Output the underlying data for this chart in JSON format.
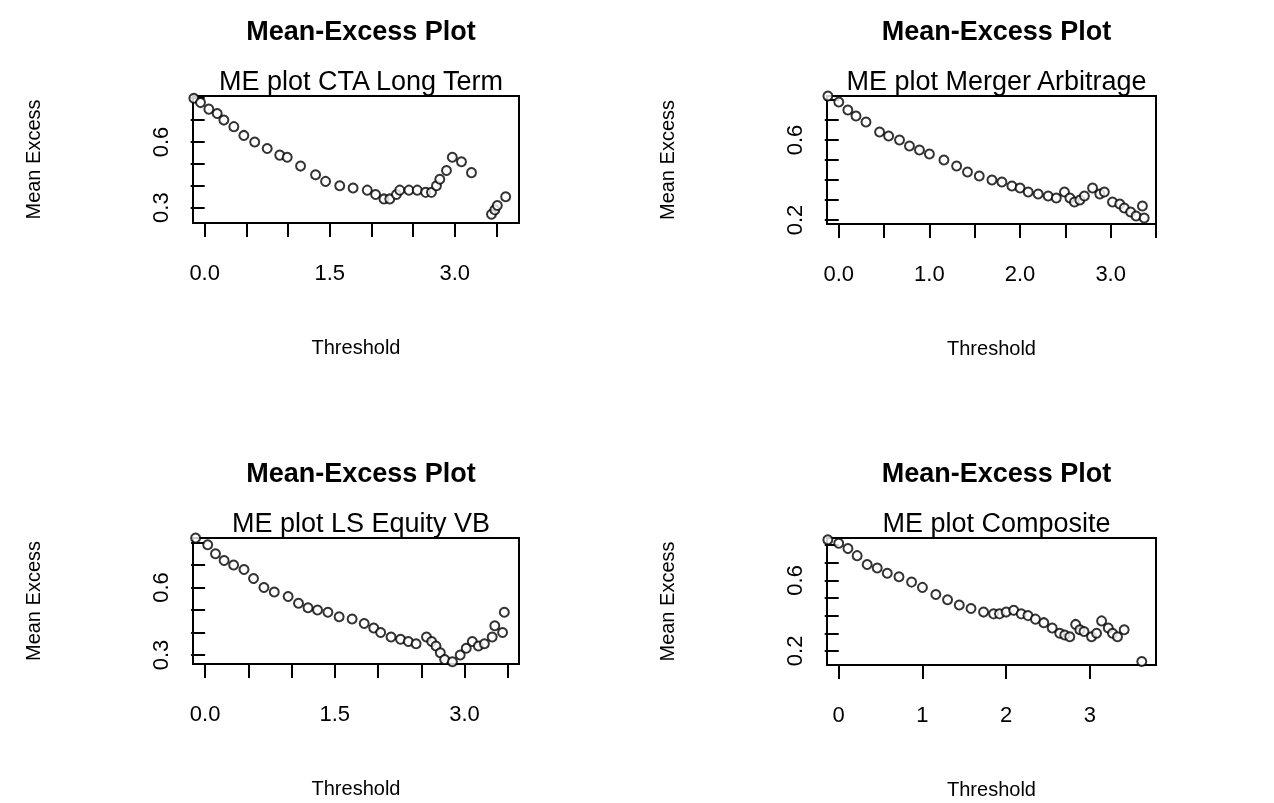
{
  "chart_data": [
    {
      "type": "scatter",
      "title": "Mean-Excess Plot",
      "subtitle": "ME plot CTA Long Term",
      "xlabel": "Threshold",
      "ylabel": "Mean Excess",
      "color": "#000000",
      "marker": "circle",
      "grid": false,
      "x": [
        -0.13,
        -0.05,
        0.05,
        0.15,
        0.23,
        0.35,
        0.47,
        0.6,
        0.75,
        0.9,
        0.99,
        1.15,
        1.33,
        1.45,
        1.62,
        1.78,
        1.95,
        2.05,
        2.15,
        2.22,
        2.3,
        2.34,
        2.45,
        2.55,
        2.65,
        2.72,
        2.78,
        2.82,
        2.9,
        2.97,
        3.08,
        3.2,
        3.44,
        3.48,
        3.51,
        3.61
      ],
      "values": [
        0.8,
        0.78,
        0.75,
        0.73,
        0.7,
        0.67,
        0.63,
        0.6,
        0.57,
        0.54,
        0.53,
        0.49,
        0.45,
        0.42,
        0.4,
        0.39,
        0.38,
        0.36,
        0.34,
        0.34,
        0.36,
        0.38,
        0.38,
        0.38,
        0.37,
        0.37,
        0.4,
        0.43,
        0.47,
        0.53,
        0.51,
        0.46,
        0.27,
        0.29,
        0.31,
        0.35
      ],
      "xlim": [
        -0.14,
        3.77
      ],
      "ylim": [
        0.23,
        0.81
      ],
      "xticks": [
        {
          "value": 0,
          "label": "0.0"
        },
        {
          "value": 0.5,
          "label": null
        },
        {
          "value": 1,
          "label": null
        },
        1.5,
        {
          "value": 2,
          "label": null
        },
        {
          "value": 2.5,
          "label": null
        },
        {
          "value": 3,
          "label": "3.0"
        },
        {
          "value": 3.5,
          "label": null
        }
      ],
      "yticks": [
        0.3,
        {
          "value": 0.4,
          "label": null
        },
        {
          "value": 0.5,
          "label": null
        },
        0.6,
        {
          "value": 0.7,
          "label": null
        },
        {
          "value": 0.8,
          "label": null
        }
      ]
    },
    {
      "type": "scatter",
      "title": "Mean-Excess Plot",
      "subtitle": "ME plot Merger Arbitrage",
      "xlabel": "Threshold",
      "ylabel": "Mean Excess",
      "color": "#000000",
      "marker": "circle",
      "grid": false,
      "x": [
        -0.12,
        0.0,
        0.1,
        0.19,
        0.3,
        0.45,
        0.55,
        0.67,
        0.78,
        0.89,
        1.0,
        1.16,
        1.3,
        1.42,
        1.55,
        1.69,
        1.8,
        1.91,
        2.0,
        2.09,
        2.2,
        2.31,
        2.4,
        2.49,
        2.55,
        2.6,
        2.66,
        2.71,
        2.8,
        2.88,
        2.93,
        3.02,
        3.1,
        3.15,
        3.22,
        3.28,
        3.35,
        3.37
      ],
      "values": [
        0.82,
        0.79,
        0.75,
        0.72,
        0.69,
        0.64,
        0.62,
        0.6,
        0.57,
        0.55,
        0.53,
        0.5,
        0.47,
        0.44,
        0.42,
        0.4,
        0.39,
        0.37,
        0.36,
        0.34,
        0.33,
        0.32,
        0.31,
        0.34,
        0.31,
        0.29,
        0.3,
        0.32,
        0.36,
        0.33,
        0.34,
        0.29,
        0.28,
        0.26,
        0.24,
        0.22,
        0.27,
        0.21
      ],
      "xlim": [
        -0.13,
        3.5
      ],
      "ylim": [
        0.18,
        0.82
      ],
      "xticks": [
        {
          "value": 0,
          "label": "0.0"
        },
        {
          "value": 0.5,
          "label": null
        },
        {
          "value": 1,
          "label": "1.0"
        },
        {
          "value": 1.5,
          "label": null
        },
        {
          "value": 2,
          "label": "2.0"
        },
        {
          "value": 2.5,
          "label": null
        },
        {
          "value": 3,
          "label": "3.0"
        },
        {
          "value": 3.5,
          "label": null
        }
      ],
      "yticks": [
        0.2,
        {
          "value": 0.3,
          "label": null
        },
        {
          "value": 0.4,
          "label": null
        },
        {
          "value": 0.5,
          "label": null
        },
        0.6,
        {
          "value": 0.7,
          "label": null
        },
        {
          "value": 0.8,
          "label": null
        }
      ]
    },
    {
      "type": "scatter",
      "title": "Mean-Excess Plot",
      "subtitle": "ME plot LS Equity VB",
      "xlabel": "Threshold",
      "ylabel": "Mean Excess",
      "color": "#000000",
      "marker": "circle",
      "grid": false,
      "x": [
        -0.11,
        0.03,
        0.12,
        0.22,
        0.33,
        0.45,
        0.56,
        0.68,
        0.8,
        0.96,
        1.08,
        1.19,
        1.3,
        1.42,
        1.55,
        1.7,
        1.84,
        1.95,
        2.03,
        2.15,
        2.26,
        2.35,
        2.44,
        2.56,
        2.62,
        2.67,
        2.72,
        2.77,
        2.86,
        2.95,
        3.02,
        3.09,
        3.16,
        3.23,
        3.32,
        3.35,
        3.44,
        3.46
      ],
      "values": [
        0.82,
        0.79,
        0.75,
        0.72,
        0.7,
        0.68,
        0.64,
        0.6,
        0.58,
        0.56,
        0.53,
        0.51,
        0.5,
        0.49,
        0.47,
        0.46,
        0.44,
        0.42,
        0.4,
        0.38,
        0.37,
        0.36,
        0.35,
        0.38,
        0.36,
        0.34,
        0.31,
        0.28,
        0.27,
        0.3,
        0.33,
        0.36,
        0.34,
        0.35,
        0.38,
        0.43,
        0.4,
        0.49
      ],
      "xlim": [
        -0.14,
        3.63
      ],
      "ylim": [
        0.26,
        0.82
      ],
      "xticks": [
        {
          "value": 0,
          "label": "0.0"
        },
        {
          "value": 0.5,
          "label": null
        },
        {
          "value": 1,
          "label": null
        },
        1.5,
        {
          "value": 2,
          "label": null
        },
        {
          "value": 2.5,
          "label": null
        },
        {
          "value": 3,
          "label": "3.0"
        },
        {
          "value": 3.5,
          "label": null
        }
      ],
      "yticks": [
        0.3,
        {
          "value": 0.4,
          "label": null
        },
        {
          "value": 0.5,
          "label": null
        },
        0.6,
        {
          "value": 0.7,
          "label": null
        },
        {
          "value": 0.8,
          "label": null
        }
      ]
    },
    {
      "type": "scatter",
      "title": "Mean-Excess Plot",
      "subtitle": "ME plot Composite",
      "xlabel": "Threshold",
      "ylabel": "Mean Excess",
      "color": "#000000",
      "marker": "circle",
      "grid": false,
      "x": [
        -0.13,
        0.0,
        0.11,
        0.22,
        0.34,
        0.46,
        0.58,
        0.72,
        0.87,
        1.0,
        1.16,
        1.3,
        1.44,
        1.58,
        1.73,
        1.85,
        1.92,
        2.0,
        2.09,
        2.18,
        2.26,
        2.35,
        2.45,
        2.55,
        2.64,
        2.7,
        2.76,
        2.83,
        2.88,
        2.93,
        3.02,
        3.08,
        3.14,
        3.22,
        3.27,
        3.33,
        3.41,
        3.62
      ],
      "values": [
        0.83,
        0.81,
        0.78,
        0.74,
        0.69,
        0.67,
        0.64,
        0.62,
        0.59,
        0.56,
        0.52,
        0.49,
        0.46,
        0.44,
        0.42,
        0.41,
        0.41,
        0.42,
        0.43,
        0.41,
        0.4,
        0.38,
        0.36,
        0.33,
        0.3,
        0.29,
        0.28,
        0.35,
        0.32,
        0.31,
        0.28,
        0.3,
        0.37,
        0.33,
        0.3,
        0.28,
        0.32,
        0.14
      ],
      "xlim": [
        -0.14,
        3.79
      ],
      "ylim": [
        0.12,
        0.84
      ],
      "xticks": [
        0,
        1,
        2,
        3
      ],
      "yticks": [
        0.2,
        {
          "value": 0.3,
          "label": null
        },
        {
          "value": 0.4,
          "label": null
        },
        {
          "value": 0.5,
          "label": null
        },
        0.6,
        {
          "value": 0.7,
          "label": null
        },
        {
          "value": 0.8,
          "label": null
        }
      ]
    }
  ]
}
